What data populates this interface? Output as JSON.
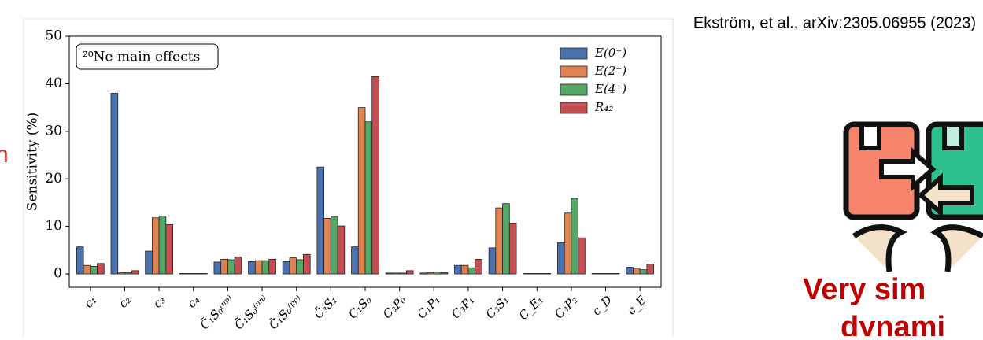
{
  "citation": "Ekström, et al., arXiv:2305.06955 (2023)",
  "left_fragment": "n",
  "caption_lines": [
    "Very sim",
    "dynami"
  ],
  "chart_data": {
    "type": "bar",
    "annotation": "²⁰Ne main effects",
    "y_label": "Sensitivity (%)",
    "categories": [
      "c₁",
      "c₂",
      "c₃",
      "c₄",
      "C̃₁S₀⁽ⁿᵖ⁾",
      "C̃₁S₀⁽ⁿⁿ⁾",
      "C̃₁S₀⁽ᵖᵖ⁾",
      "C̃₃S₁",
      "C₁S₀",
      "C₃P₀",
      "C₁P₁",
      "C₃P₁",
      "C₃S₁",
      "C_E₁",
      "C₃P₂",
      "c_D",
      "c_E"
    ],
    "series": [
      {
        "name": "E(0⁺)",
        "color": "#4c72b0",
        "values": [
          5.7,
          38,
          4.8,
          0.1,
          2.5,
          2.6,
          2.6,
          22.5,
          5.7,
          0.2,
          0.2,
          1.8,
          5.5,
          0.1,
          6.6,
          0.1,
          1.4
        ]
      },
      {
        "name": "E(2⁺)",
        "color": "#dd8452",
        "values": [
          1.8,
          0.3,
          11.8,
          0.1,
          3.1,
          2.8,
          3.4,
          11.7,
          35,
          0.2,
          0.3,
          1.8,
          13.9,
          0.1,
          12.8,
          0.1,
          1.2
        ]
      },
      {
        "name": "E(4⁺)",
        "color": "#55a868",
        "values": [
          1.6,
          0.3,
          12.2,
          0.1,
          3.0,
          2.8,
          3.0,
          12.1,
          32,
          0.2,
          0.4,
          1.3,
          14.8,
          0.1,
          15.9,
          0.1,
          0.9
        ]
      },
      {
        "name": "R₄₂",
        "color": "#c44e52",
        "values": [
          2.2,
          0.7,
          10.4,
          0.1,
          3.6,
          3.1,
          4.1,
          10.1,
          41.5,
          0.7,
          0.3,
          3.1,
          10.7,
          0.1,
          7.6,
          0.1,
          2.1
        ]
      }
    ],
    "ylim": [
      -2.8,
      50
    ],
    "yticks": [
      0,
      10,
      20,
      30,
      40,
      50
    ],
    "legend": "upper right"
  }
}
